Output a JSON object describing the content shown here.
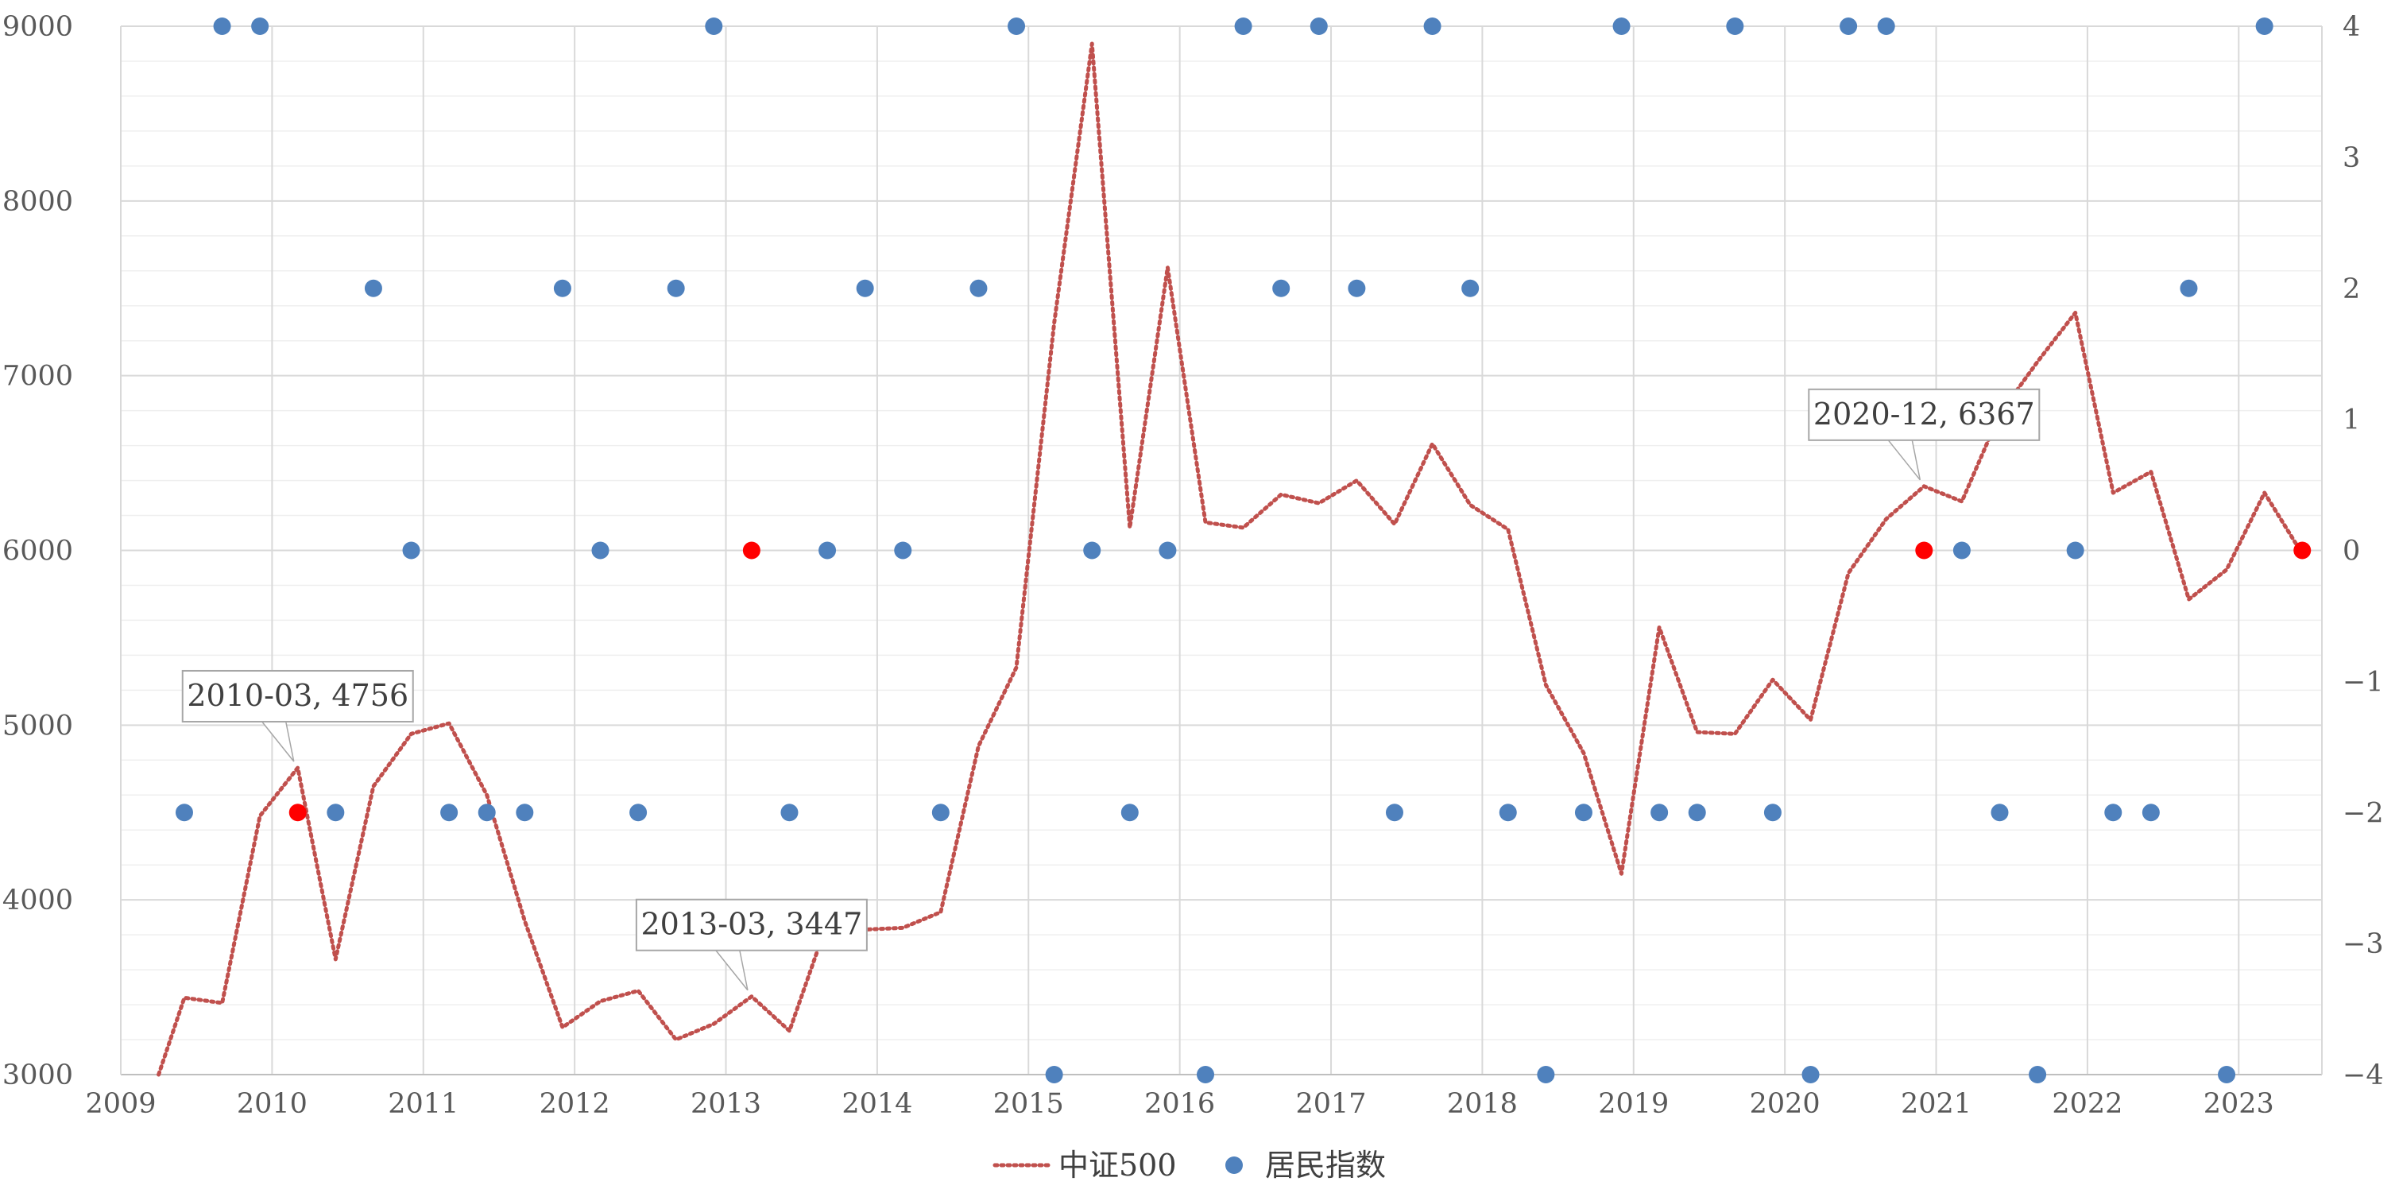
{
  "chart_data": {
    "type": "line+scatter",
    "x_axis": {
      "ticks": [
        "2009",
        "2010",
        "2011",
        "2012",
        "2013",
        "2014",
        "2015",
        "2016",
        "2017",
        "2018",
        "2019",
        "2020",
        "2021",
        "2022",
        "2023"
      ],
      "range": [
        2009.0,
        2023.55
      ]
    },
    "y_left": {
      "ticks": [
        "3000",
        "4000",
        "5000",
        "6000",
        "7000",
        "8000",
        "9000"
      ],
      "range": [
        3000,
        9000
      ]
    },
    "y_right": {
      "ticks": [
        "4",
        "3",
        "2",
        "1",
        "0",
        "−1",
        "−2",
        "−3",
        "−4"
      ],
      "range": [
        -4,
        4
      ]
    },
    "grid": true,
    "legend": {
      "position": "bottom",
      "entries": [
        {
          "name": "中证500",
          "style": "dotted-line",
          "color": "#c0504d"
        },
        {
          "name": "居民指数",
          "style": "circle-marker",
          "color": "#4f81bd"
        }
      ]
    },
    "series": [
      {
        "name": "中证500",
        "axis": "left",
        "type": "line",
        "color": "#c0504d",
        "points": [
          [
            2009.25,
            3000
          ],
          [
            2009.42,
            3440
          ],
          [
            2009.67,
            3410
          ],
          [
            2009.92,
            4480
          ],
          [
            2010.17,
            4756
          ],
          [
            2010.42,
            3660
          ],
          [
            2010.67,
            4650
          ],
          [
            2010.92,
            4950
          ],
          [
            2011.17,
            5010
          ],
          [
            2011.42,
            4600
          ],
          [
            2011.67,
            3880
          ],
          [
            2011.92,
            3270
          ],
          [
            2012.17,
            3420
          ],
          [
            2012.42,
            3480
          ],
          [
            2012.67,
            3200
          ],
          [
            2012.92,
            3290
          ],
          [
            2013.17,
            3447
          ],
          [
            2013.42,
            3250
          ],
          [
            2013.67,
            3870
          ],
          [
            2013.92,
            3830
          ],
          [
            2014.17,
            3840
          ],
          [
            2014.42,
            3930
          ],
          [
            2014.67,
            4880
          ],
          [
            2014.92,
            5330
          ],
          [
            2015.17,
            7300
          ],
          [
            2015.42,
            8900
          ],
          [
            2015.67,
            6130
          ],
          [
            2015.92,
            7620
          ],
          [
            2016.17,
            6160
          ],
          [
            2016.42,
            6130
          ],
          [
            2016.67,
            6320
          ],
          [
            2016.92,
            6270
          ],
          [
            2017.17,
            6400
          ],
          [
            2017.42,
            6150
          ],
          [
            2017.67,
            6610
          ],
          [
            2017.92,
            6260
          ],
          [
            2018.17,
            6120
          ],
          [
            2018.42,
            5230
          ],
          [
            2018.67,
            4840
          ],
          [
            2018.92,
            4150
          ],
          [
            2019.17,
            5560
          ],
          [
            2019.42,
            4960
          ],
          [
            2019.67,
            4950
          ],
          [
            2019.92,
            5260
          ],
          [
            2020.17,
            5030
          ],
          [
            2020.42,
            5870
          ],
          [
            2020.67,
            6180
          ],
          [
            2020.92,
            6367
          ],
          [
            2021.17,
            6280
          ],
          [
            2021.42,
            6780
          ],
          [
            2021.67,
            7080
          ],
          [
            2021.92,
            7360
          ],
          [
            2022.17,
            6330
          ],
          [
            2022.42,
            6450
          ],
          [
            2022.67,
            5720
          ],
          [
            2022.92,
            5890
          ],
          [
            2023.17,
            6330
          ],
          [
            2023.42,
            5980
          ]
        ]
      },
      {
        "name": "居民指数",
        "axis": "right",
        "type": "scatter",
        "color": "#4f81bd",
        "highlight_color": "#ff0000",
        "points": [
          [
            2009.42,
            -2
          ],
          [
            2009.67,
            4
          ],
          [
            2009.92,
            4
          ],
          [
            2010.17,
            -2
          ],
          [
            2010.42,
            -2
          ],
          [
            2010.67,
            2
          ],
          [
            2010.92,
            0
          ],
          [
            2011.17,
            -2
          ],
          [
            2011.42,
            -2
          ],
          [
            2011.67,
            -2
          ],
          [
            2011.92,
            2
          ],
          [
            2012.17,
            0
          ],
          [
            2012.42,
            -2
          ],
          [
            2012.67,
            2
          ],
          [
            2012.92,
            4
          ],
          [
            2013.17,
            0
          ],
          [
            2013.42,
            -2
          ],
          [
            2013.67,
            0
          ],
          [
            2013.92,
            2
          ],
          [
            2014.17,
            0
          ],
          [
            2014.42,
            -2
          ],
          [
            2014.67,
            2
          ],
          [
            2014.92,
            4
          ],
          [
            2015.17,
            -4
          ],
          [
            2015.42,
            0
          ],
          [
            2015.67,
            -2
          ],
          [
            2015.92,
            0
          ],
          [
            2016.17,
            -4
          ],
          [
            2016.42,
            4
          ],
          [
            2016.67,
            2
          ],
          [
            2016.92,
            4
          ],
          [
            2017.17,
            2
          ],
          [
            2017.42,
            -2
          ],
          [
            2017.67,
            4
          ],
          [
            2017.92,
            2
          ],
          [
            2018.17,
            -2
          ],
          [
            2018.42,
            -4
          ],
          [
            2018.67,
            -2
          ],
          [
            2018.92,
            4
          ],
          [
            2019.17,
            -2
          ],
          [
            2019.42,
            -2
          ],
          [
            2019.67,
            4
          ],
          [
            2019.92,
            -2
          ],
          [
            2020.17,
            -4
          ],
          [
            2020.42,
            4
          ],
          [
            2020.67,
            4
          ],
          [
            2020.92,
            0
          ],
          [
            2021.17,
            0
          ],
          [
            2021.42,
            -2
          ],
          [
            2021.67,
            -4
          ],
          [
            2021.92,
            0
          ],
          [
            2022.17,
            -2
          ],
          [
            2022.42,
            -2
          ],
          [
            2022.67,
            2
          ],
          [
            2022.92,
            -4
          ],
          [
            2023.17,
            4
          ],
          [
            2023.42,
            0
          ]
        ],
        "highlighted_x": [
          2010.17,
          2013.17,
          2020.92,
          2023.42
        ]
      }
    ],
    "annotations": [
      {
        "label": "2010-03, 4756",
        "x": 2010.17,
        "y": 4756
      },
      {
        "label": "2013-03, 3447",
        "x": 2013.17,
        "y": 3447
      },
      {
        "label": "2020-12, 6367",
        "x": 2020.92,
        "y": 6367
      }
    ]
  }
}
